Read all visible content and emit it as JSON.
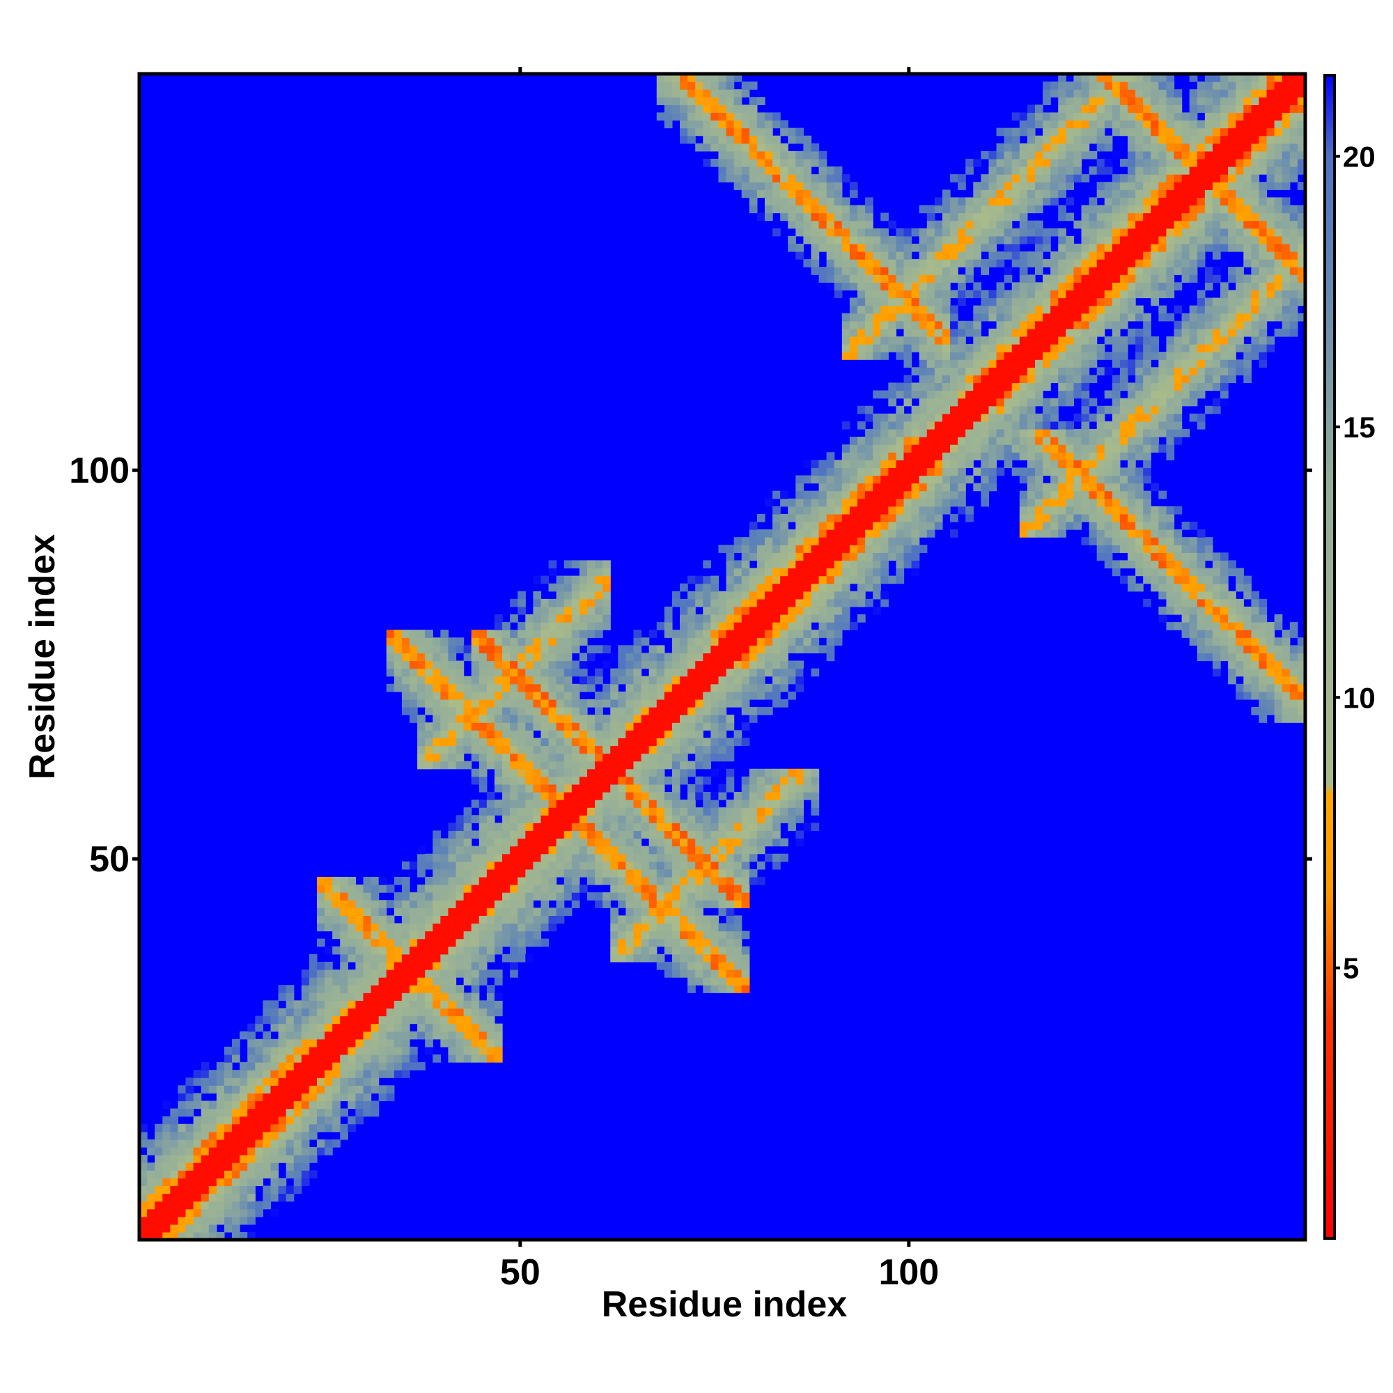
{
  "chart_data": {
    "type": "heatmap",
    "title": "",
    "xlabel": "Residue index",
    "ylabel": "Residue index",
    "xlim": [
      1,
      151
    ],
    "ylim": [
      1,
      151
    ],
    "n_residues": 151,
    "x_ticks": [
      50,
      100
    ],
    "y_ticks": [
      50,
      100
    ],
    "colorbar": {
      "range": [
        0,
        21.5
      ],
      "ticks": [
        5,
        10,
        15,
        20
      ],
      "stops": [
        {
          "value": 0,
          "color": "#ff0000"
        },
        {
          "value": 4,
          "color": "#ff3300"
        },
        {
          "value": 6.5,
          "color": "#ff9900"
        },
        {
          "value": 8.2,
          "color": "#ffa500"
        },
        {
          "value": 8.4,
          "color": "#a9bb8a"
        },
        {
          "value": 14,
          "color": "#93ad9a"
        },
        {
          "value": 18,
          "color": "#5f84b6"
        },
        {
          "value": 20,
          "color": "#4f72c4"
        },
        {
          "value": 21.5,
          "color": "#0000ff"
        }
      ]
    },
    "background_value": 21.5,
    "features": [
      {
        "kind": "diagonal",
        "description": "self/neighbour contacts along i=j"
      },
      {
        "kind": "helix_band",
        "from": 1,
        "to": 26
      },
      {
        "kind": "helix_band",
        "from": 75,
        "to": 104
      },
      {
        "kind": "helix_band",
        "from": 108,
        "to": 151
      },
      {
        "kind": "antiparallel",
        "i": [
          28,
          37
        ],
        "j": [
          34,
          43
        ]
      },
      {
        "kind": "antiparallel",
        "i": [
          37,
          58
        ],
        "j": [
          45,
          75
        ]
      },
      {
        "kind": "antiparallel",
        "i": [
          48,
          62
        ],
        "j": [
          58,
          75
        ]
      },
      {
        "kind": "antiparallel",
        "i": [
          72,
          101
        ],
        "j": [
          101,
          150
        ]
      },
      {
        "kind": "antiparallel",
        "i": [
          126,
          144
        ],
        "j": [
          136,
          151
        ]
      },
      {
        "kind": "parallel",
        "i": [
          40,
          58
        ],
        "j": [
          65,
          85
        ]
      },
      {
        "kind": "parallel",
        "i": [
          95,
          127
        ],
        "j": [
          118,
          148
        ]
      }
    ]
  }
}
